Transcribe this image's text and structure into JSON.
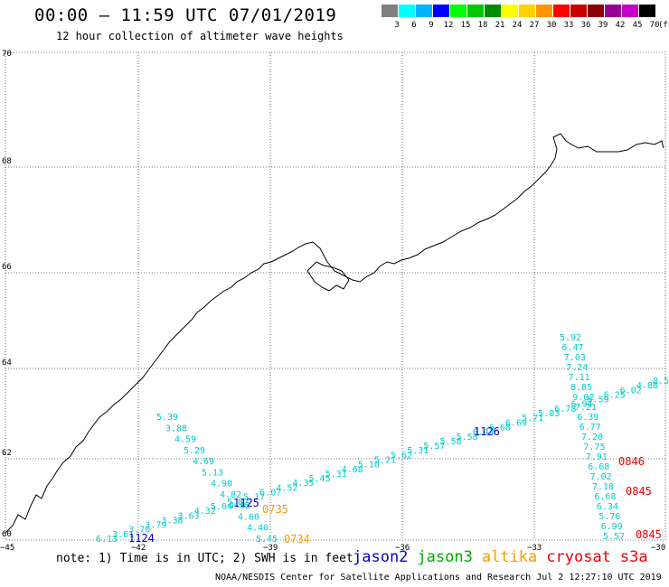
{
  "header": {
    "title": "00:00 – 11:59 UTC 07/01/2019",
    "subtitle": "12 hour collection of altimeter wave heights"
  },
  "legend": {
    "unit": "(ft)",
    "bins": [
      {
        "label": "3",
        "color": "#808080"
      },
      {
        "label": "6",
        "color": "#00ffff"
      },
      {
        "label": "9",
        "color": "#00b4ff"
      },
      {
        "label": "12",
        "color": "#0000ff"
      },
      {
        "label": "15",
        "color": "#00ff00"
      },
      {
        "label": "18",
        "color": "#00c800"
      },
      {
        "label": "21",
        "color": "#008c00"
      },
      {
        "label": "24",
        "color": "#ffff00"
      },
      {
        "label": "27",
        "color": "#ffd200"
      },
      {
        "label": "30",
        "color": "#ff9600"
      },
      {
        "label": "33",
        "color": "#ff0000"
      },
      {
        "label": "36",
        "color": "#c80000"
      },
      {
        "label": "39",
        "color": "#8c0000"
      },
      {
        "label": "42",
        "color": "#960096"
      },
      {
        "label": "45",
        "color": "#c800c8"
      },
      {
        "label": "70",
        "color": "#000000"
      }
    ]
  },
  "map": {
    "lat_labels": [
      "70",
      "68",
      "66",
      "64",
      "62",
      "60"
    ],
    "lon_labels": [
      "−45",
      "−42",
      "−39",
      "−36",
      "−33",
      "−30"
    ],
    "point_color": "#00cccc"
  },
  "tracks": {
    "jason2_track": [
      "6.13",
      "3.61",
      "3.70",
      "3.79",
      "3.38",
      "3.63",
      "4.32",
      "5.04",
      "5.82",
      "5.17",
      "6.07",
      "4.52",
      "4.35",
      "5.45",
      "5.31",
      "4.68",
      "5.10",
      "5.21",
      "5.62",
      "5.31",
      "5.57",
      "5.58",
      "5.58",
      "6.44",
      "6.68",
      "6.69",
      "5.71",
      "5.83",
      "6.78",
      "6.94",
      "6.59",
      "6.25",
      "6.02",
      "4.88",
      "8.5"
    ],
    "altika_track": [
      "5.39",
      "3.88",
      "4.59",
      "5.29",
      "4.69",
      "5.13",
      "4.90",
      "4.82",
      "4.82",
      "4.60",
      "4.40",
      "5.45"
    ],
    "s3a_track": [
      "5.92",
      "6.47",
      "7.03",
      "7.24",
      "7.11",
      "8.85",
      "9.02",
      "7.21",
      "6.39",
      "6.77",
      "7.20",
      "7.75",
      "7.91",
      "6.68",
      "7.02",
      "7.18",
      "6.68",
      "6.34",
      "5.76",
      "6.99",
      "5.57"
    ]
  },
  "times": [
    {
      "label": "1124",
      "color": "#0000cc"
    },
    {
      "label": "1125",
      "color": "#0000cc"
    },
    {
      "label": "1126",
      "color": "#0000cc"
    },
    {
      "label": "0735",
      "color": "#ff9900"
    },
    {
      "label": "0734",
      "color": "#ff9900"
    },
    {
      "label": "0846",
      "color": "#ee0000"
    },
    {
      "label": "0845",
      "color": "#ee0000"
    },
    {
      "label": "0845",
      "color": "#ee0000"
    }
  ],
  "footer": {
    "note": "note: 1) Time is in UTC; 2) SWH is in feet",
    "satellites": [
      {
        "name": "jason2",
        "color": "#0000cc"
      },
      {
        "name": "jason3",
        "color": "#00aa00"
      },
      {
        "name": "altika",
        "color": "#ff9900"
      },
      {
        "name": "cryosat",
        "color": "#ee0000"
      },
      {
        "name": "s3a",
        "color": "#ee0000"
      }
    ],
    "credit": "NOAA/NESDIS Center for Satellite Applications and Research    Jul  2 12:27:10 UTC 2019"
  }
}
